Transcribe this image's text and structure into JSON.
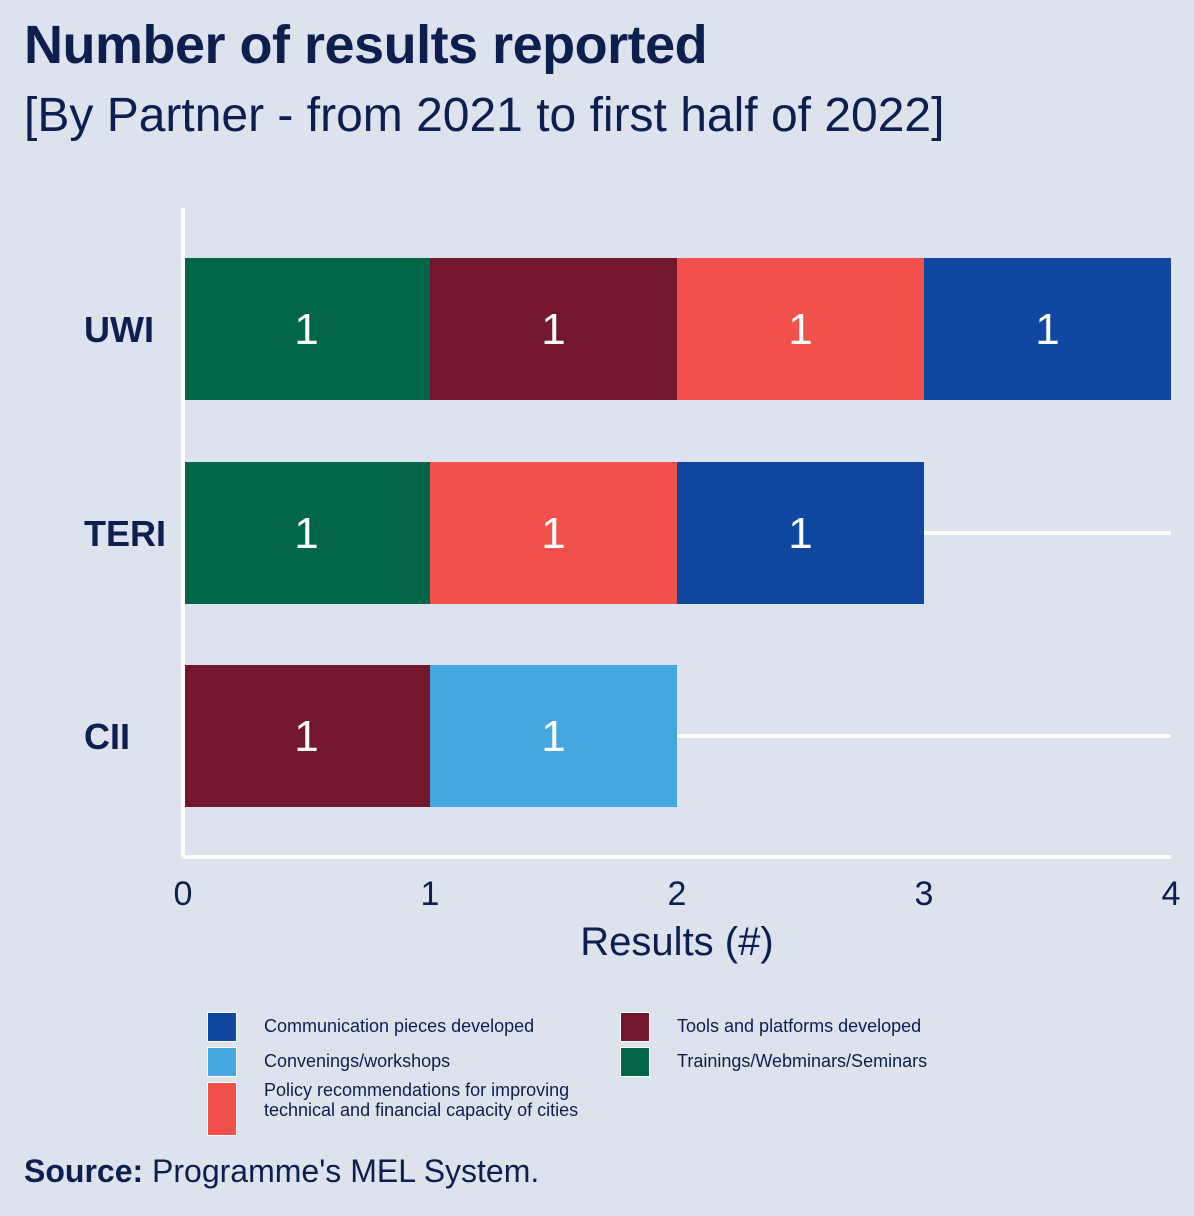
{
  "header": {
    "title": "Number of results reported",
    "subtitle": "[By Partner - from 2021 to first half of 2022]"
  },
  "footer": {
    "source_label": "Source:",
    "source_text": " Programme's MEL System."
  },
  "colors": {
    "background": "#dce3ec",
    "text": "#0d1f4f",
    "Communication pieces developed": "#0f47a1",
    "Convenings/workshops": "#46a6e0",
    "Policy recommendations for improving technical and financial capacity of cities": "#f2504a",
    "Tools and platforms developed": "#73172e",
    "Trainings/Webminars/Seminars": "#006647"
  },
  "chart_data": {
    "type": "bar",
    "orientation": "horizontal",
    "stacked": true,
    "title": "Number of results reported",
    "subtitle": "[By Partner - from 2021 to first half of 2022]",
    "xlabel": "Results (#)",
    "ylabel": "",
    "xlim": [
      0,
      4
    ],
    "xticks": [
      "0",
      "1",
      "2",
      "3",
      "4"
    ],
    "categories": [
      "UWI",
      "TERI",
      "CII"
    ],
    "segment_order": {
      "UWI": [
        "Trainings/Webminars/Seminars",
        "Tools and platforms developed",
        "Policy recommendations for improving technical and financial capacity of cities",
        "Communication pieces developed"
      ],
      "TERI": [
        "Trainings/Webminars/Seminars",
        "Policy recommendations for improving technical and financial capacity of cities",
        "Communication pieces developed"
      ],
      "CII": [
        "Tools and platforms developed",
        "Convenings/workshops"
      ]
    },
    "series": [
      {
        "name": "Communication pieces developed",
        "values": [
          1,
          1,
          0
        ]
      },
      {
        "name": "Convenings/workshops",
        "values": [
          0,
          0,
          1
        ]
      },
      {
        "name": "Policy recommendations for improving technical and financial capacity of cities",
        "values": [
          1,
          1,
          0
        ]
      },
      {
        "name": "Tools and platforms developed",
        "values": [
          1,
          0,
          1
        ]
      },
      {
        "name": "Trainings/Webminars/Seminars",
        "values": [
          1,
          1,
          0
        ]
      }
    ],
    "data_labels": true,
    "grid": "horizontal lines at each partner",
    "legend_placement": "bottom",
    "legend": [
      "Communication pieces developed",
      "Convenings/workshops",
      "Policy recommendations for improving technical and financial capacity of cities",
      "Tools and platforms developed",
      "Trainings/Webminars/Seminars"
    ]
  }
}
